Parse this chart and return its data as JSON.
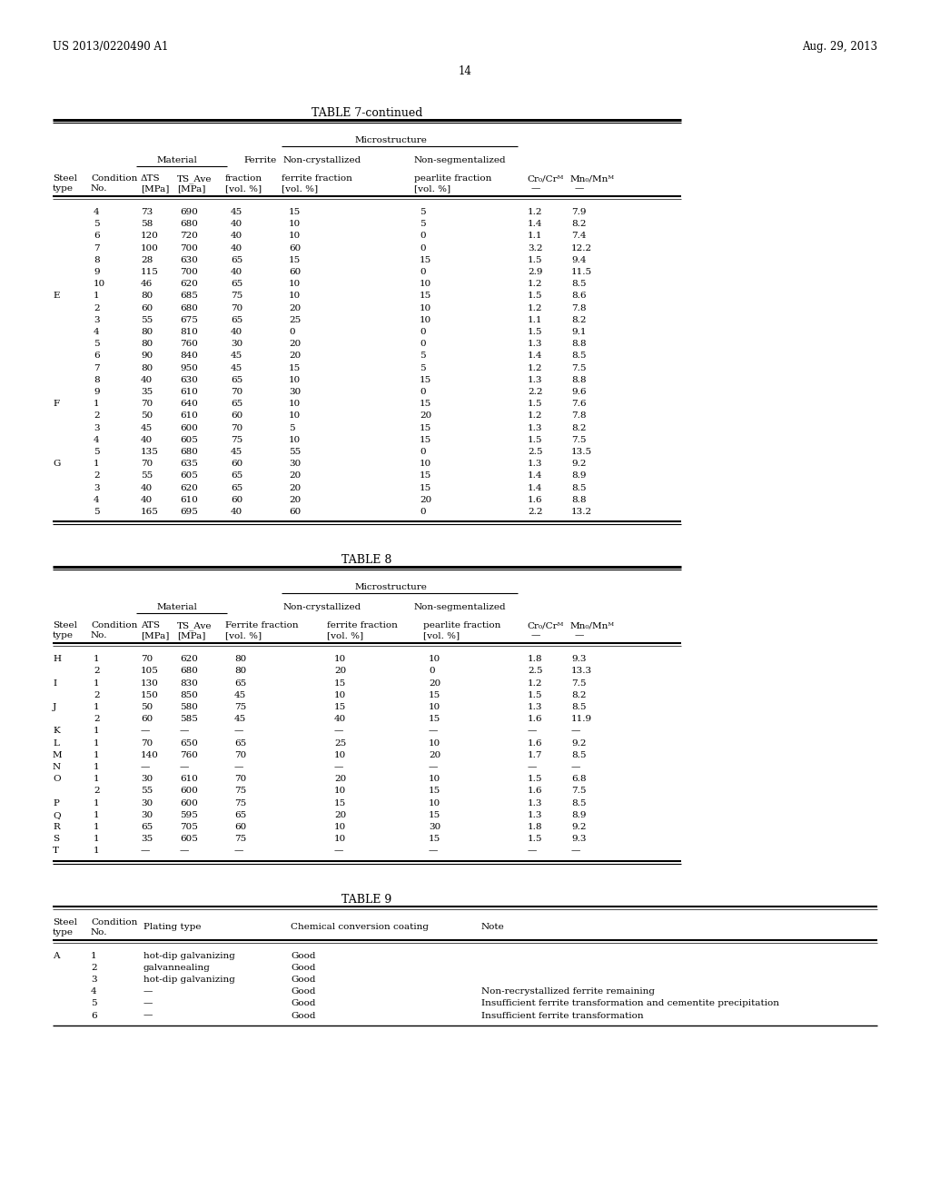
{
  "page_header_left": "US 2013/0220490 A1",
  "page_header_right": "Aug. 29, 2013",
  "page_number": "14",
  "bg_color": "#ffffff",
  "table7_title": "TABLE 7-continued",
  "table7_rows": [
    [
      "",
      "4",
      "73",
      "690",
      "45",
      "15",
      "5",
      "1.2",
      "7.9"
    ],
    [
      "",
      "5",
      "58",
      "680",
      "40",
      "10",
      "5",
      "1.4",
      "8.2"
    ],
    [
      "",
      "6",
      "120",
      "720",
      "40",
      "10",
      "0",
      "1.1",
      "7.4"
    ],
    [
      "",
      "7",
      "100",
      "700",
      "40",
      "60",
      "0",
      "3.2",
      "12.2"
    ],
    [
      "",
      "8",
      "28",
      "630",
      "65",
      "15",
      "15",
      "1.5",
      "9.4"
    ],
    [
      "",
      "9",
      "115",
      "700",
      "40",
      "60",
      "0",
      "2.9",
      "11.5"
    ],
    [
      "",
      "10",
      "46",
      "620",
      "65",
      "10",
      "10",
      "1.2",
      "8.5"
    ],
    [
      "E",
      "1",
      "80",
      "685",
      "75",
      "10",
      "15",
      "1.5",
      "8.6"
    ],
    [
      "",
      "2",
      "60",
      "680",
      "70",
      "20",
      "10",
      "1.2",
      "7.8"
    ],
    [
      "",
      "3",
      "55",
      "675",
      "65",
      "25",
      "10",
      "1.1",
      "8.2"
    ],
    [
      "",
      "4",
      "80",
      "810",
      "40",
      "0",
      "0",
      "1.5",
      "9.1"
    ],
    [
      "",
      "5",
      "80",
      "760",
      "30",
      "20",
      "0",
      "1.3",
      "8.8"
    ],
    [
      "",
      "6",
      "90",
      "840",
      "45",
      "20",
      "5",
      "1.4",
      "8.5"
    ],
    [
      "",
      "7",
      "80",
      "950",
      "45",
      "15",
      "5",
      "1.2",
      "7.5"
    ],
    [
      "",
      "8",
      "40",
      "630",
      "65",
      "10",
      "15",
      "1.3",
      "8.8"
    ],
    [
      "",
      "9",
      "35",
      "610",
      "70",
      "30",
      "0",
      "2.2",
      "9.6"
    ],
    [
      "F",
      "1",
      "70",
      "640",
      "65",
      "10",
      "15",
      "1.5",
      "7.6"
    ],
    [
      "",
      "2",
      "50",
      "610",
      "60",
      "10",
      "20",
      "1.2",
      "7.8"
    ],
    [
      "",
      "3",
      "45",
      "600",
      "70",
      "5",
      "15",
      "1.3",
      "8.2"
    ],
    [
      "",
      "4",
      "40",
      "605",
      "75",
      "10",
      "15",
      "1.5",
      "7.5"
    ],
    [
      "",
      "5",
      "135",
      "680",
      "45",
      "55",
      "0",
      "2.5",
      "13.5"
    ],
    [
      "G",
      "1",
      "70",
      "635",
      "60",
      "30",
      "10",
      "1.3",
      "9.2"
    ],
    [
      "",
      "2",
      "55",
      "605",
      "65",
      "20",
      "15",
      "1.4",
      "8.9"
    ],
    [
      "",
      "3",
      "40",
      "620",
      "65",
      "20",
      "15",
      "1.4",
      "8.5"
    ],
    [
      "",
      "4",
      "40",
      "610",
      "60",
      "20",
      "20",
      "1.6",
      "8.8"
    ],
    [
      "",
      "5",
      "165",
      "695",
      "40",
      "60",
      "0",
      "2.2",
      "13.2"
    ]
  ],
  "table8_title": "TABLE 8",
  "table8_rows": [
    [
      "H",
      "1",
      "70",
      "620",
      "80",
      "10",
      "10",
      "1.8",
      "9.3"
    ],
    [
      "",
      "2",
      "105",
      "680",
      "80",
      "20",
      "0",
      "2.5",
      "13.3"
    ],
    [
      "I",
      "1",
      "130",
      "830",
      "65",
      "15",
      "20",
      "1.2",
      "7.5"
    ],
    [
      "",
      "2",
      "150",
      "850",
      "45",
      "10",
      "15",
      "1.5",
      "8.2"
    ],
    [
      "J",
      "1",
      "50",
      "580",
      "75",
      "15",
      "10",
      "1.3",
      "8.5"
    ],
    [
      "",
      "2",
      "60",
      "585",
      "45",
      "40",
      "15",
      "1.6",
      "11.9"
    ],
    [
      "K",
      "1",
      "—",
      "—",
      "—",
      "—",
      "—",
      "—",
      "—"
    ],
    [
      "L",
      "1",
      "70",
      "650",
      "65",
      "25",
      "10",
      "1.6",
      "9.2"
    ],
    [
      "M",
      "1",
      "140",
      "760",
      "70",
      "10",
      "20",
      "1.7",
      "8.5"
    ],
    [
      "N",
      "1",
      "—",
      "—",
      "—",
      "—",
      "—",
      "—",
      "—"
    ],
    [
      "O",
      "1",
      "30",
      "610",
      "70",
      "20",
      "10",
      "1.5",
      "6.8"
    ],
    [
      "",
      "2",
      "55",
      "600",
      "75",
      "10",
      "15",
      "1.6",
      "7.5"
    ],
    [
      "P",
      "1",
      "30",
      "600",
      "75",
      "15",
      "10",
      "1.3",
      "8.5"
    ],
    [
      "Q",
      "1",
      "30",
      "595",
      "65",
      "20",
      "15",
      "1.3",
      "8.9"
    ],
    [
      "R",
      "1",
      "65",
      "705",
      "60",
      "10",
      "30",
      "1.8",
      "9.2"
    ],
    [
      "S",
      "1",
      "35",
      "605",
      "75",
      "10",
      "15",
      "1.5",
      "9.3"
    ],
    [
      "T",
      "1",
      "—",
      "—",
      "—",
      "—",
      "—",
      "—",
      "—"
    ]
  ],
  "table9_title": "TABLE 9",
  "table9_rows": [
    [
      "A",
      "1",
      "hot-dip galvanizing",
      "Good",
      ""
    ],
    [
      "",
      "2",
      "galvannealing",
      "Good",
      ""
    ],
    [
      "",
      "3",
      "hot-dip galvanizing",
      "Good",
      ""
    ],
    [
      "",
      "4",
      "—",
      "Good",
      "Non-recrystallized ferrite remaining"
    ],
    [
      "",
      "5",
      "—",
      "Good",
      "Insufficient ferrite transformation and cementite precipitation"
    ],
    [
      "",
      "6",
      "—",
      "Good",
      "Insufficient ferrite transformation"
    ]
  ]
}
